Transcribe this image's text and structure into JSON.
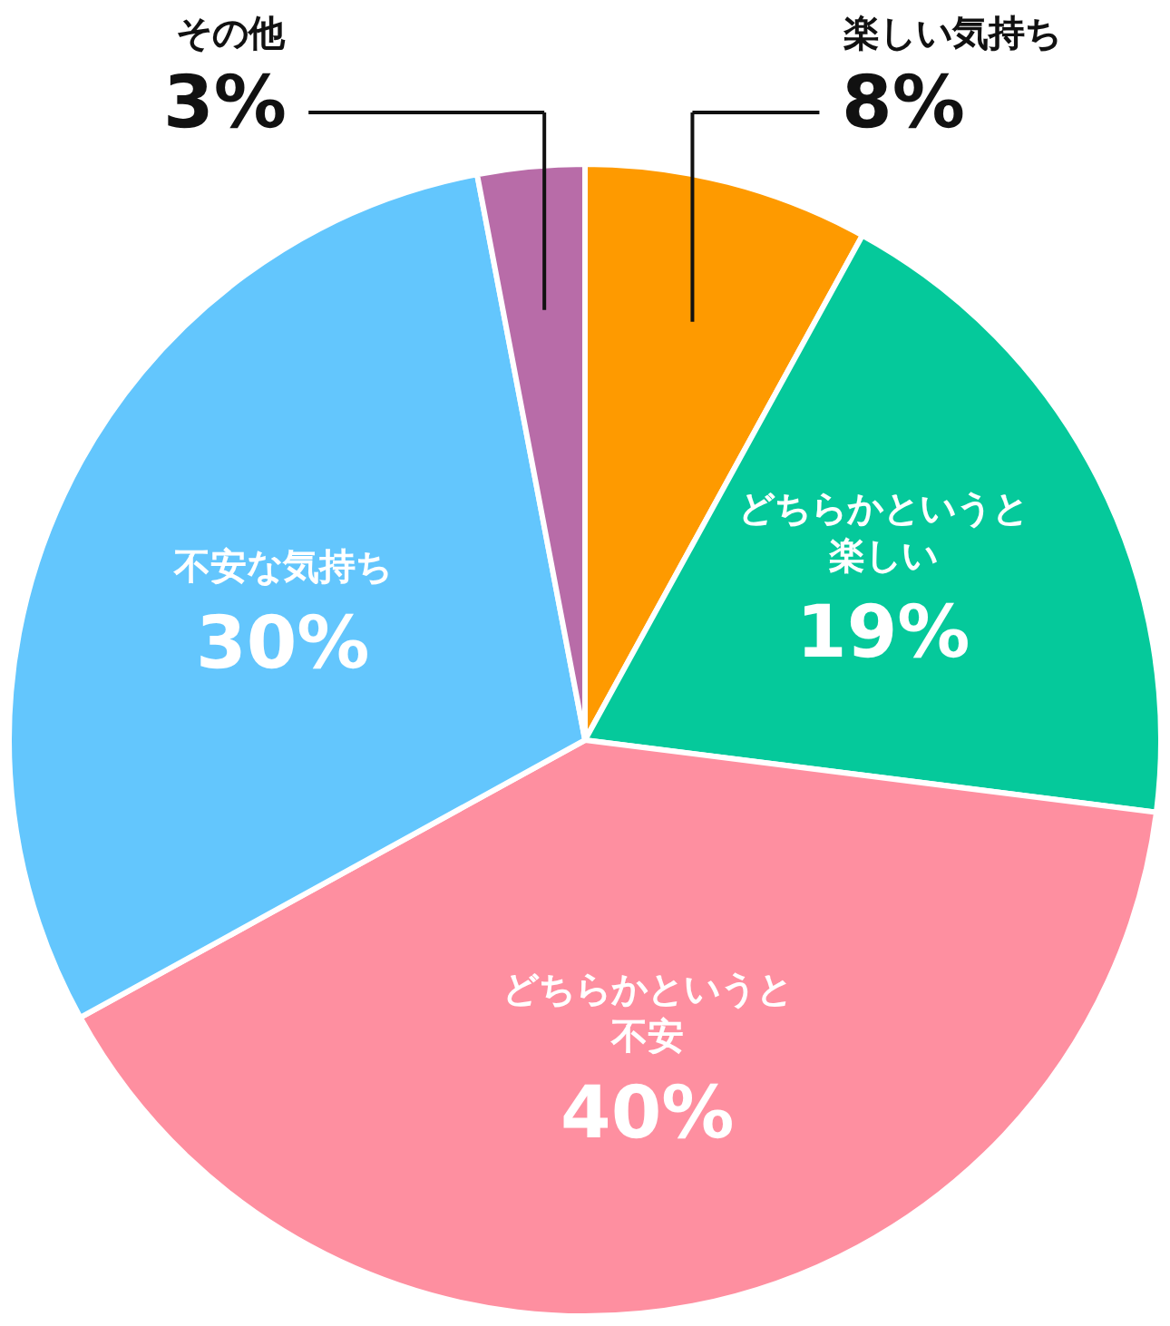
{
  "chart_data": {
    "type": "pie",
    "categories": [
      "楽しい気持ち",
      "どちらかというと楽しい",
      "どちらかというと不安",
      "不安な気持ち",
      "その他"
    ],
    "values": [
      8,
      19,
      40,
      30,
      3
    ],
    "value_labels": [
      "8%",
      "19%",
      "40%",
      "30%",
      "3%"
    ],
    "colors": [
      "#fe9a00",
      "#05c99b",
      "#fe8fa0",
      "#63c6fd",
      "#b86ca8"
    ],
    "legend": false
  }
}
